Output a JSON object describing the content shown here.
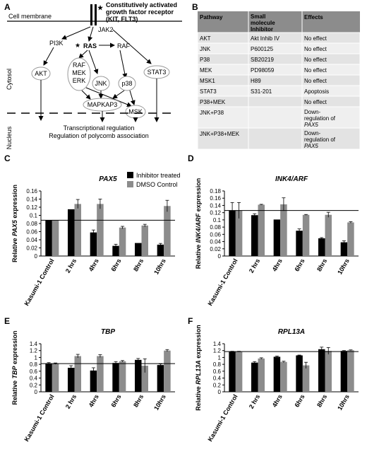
{
  "panels": {
    "A": "A",
    "B": "B",
    "C": "C",
    "D": "D",
    "E": "E",
    "F": "F"
  },
  "diagram": {
    "receptor_line1": "Constitutively activated",
    "receptor_line2": "growth factor receptor",
    "receptor_line3": "(KIT, FLT3)",
    "cell_membrane": "Cell membrane",
    "cytosol": "Cytosol",
    "nucleus": "Nucleus",
    "jak2": "JAK2",
    "pi3k": "PI3K",
    "ras": "RAS",
    "raf_top": "RAF",
    "akt": "AKT",
    "stat3": "STAT3",
    "raf": "RAF",
    "mek": "MEK",
    "erk": "ERK",
    "jnk": "JNK",
    "p38": "p38",
    "mapkap3": "MAPKAP3",
    "msk": "MSK",
    "out1": "Transcriptional regulation",
    "out2": "Regulation of polycomb association",
    "star": "★"
  },
  "table": {
    "headers": [
      "Pathway",
      "Small molecule Inhibitor",
      "Effects"
    ],
    "rows": [
      [
        "AKT",
        "Akt Inhib IV",
        "No effect"
      ],
      [
        "JNK",
        "P600125",
        "No effect"
      ],
      [
        "P38",
        "SB20219",
        "No effect"
      ],
      [
        "MEK",
        "PD98059",
        "No effect"
      ],
      [
        "MSK1",
        "H89",
        "No effect"
      ],
      [
        "STAT3",
        "S31-201",
        "Apoptosis"
      ],
      [
        "P38+MEK",
        "",
        "No effect"
      ],
      [
        "JNK+P38",
        "",
        "Down-regulation of PAX5"
      ],
      [
        "JNK+P38+MEK",
        "",
        "Down-regulation of PAX5"
      ]
    ]
  },
  "legend": {
    "series1": "Inhibitor treated",
    "series2": "DMSO Control",
    "color1": "#000000",
    "color2": "#8c8c8c"
  },
  "chart_data": [
    {
      "panel": "C",
      "type": "bar",
      "title": "PAX5",
      "ylabel": "Relative PAX5 expression",
      "ylabel_parts": [
        "Relative ",
        "PAX5",
        " expression"
      ],
      "categories": [
        "Kasumi-1 Control",
        "2 hrs",
        "4hrs",
        "6hrs",
        "8hrs",
        "10hrs"
      ],
      "ylim": [
        0,
        0.16
      ],
      "yticks": [
        "0",
        "0.02",
        "0.04",
        "0.06",
        "0.08",
        "0.1",
        "0.12",
        "0.14",
        "0.16"
      ],
      "reference_line": 0.088,
      "series": [
        {
          "name": "Inhibitor treated",
          "values": [
            0.088,
            0.115,
            0.058,
            0.025,
            0.032,
            0.028
          ],
          "errors": [
            0,
            0,
            0.006,
            0.004,
            0,
            0.003
          ]
        },
        {
          "name": "DMSO Control",
          "values": [
            0.088,
            0.128,
            0.128,
            0.07,
            0.075,
            0.123
          ],
          "errors": [
            0,
            0.011,
            0.012,
            0.003,
            0.003,
            0.014
          ]
        }
      ]
    },
    {
      "panel": "D",
      "type": "bar",
      "title": "INK4/ARF",
      "ylabel": "Relative INK4/ARF expression",
      "ylabel_parts": [
        "Relative ",
        "INK4/ARF",
        " expression"
      ],
      "categories": [
        "Kasumi-1 Control",
        "2 hrs",
        "4hrs",
        "6hrs",
        "8hrs",
        "10hrs"
      ],
      "ylim": [
        0,
        0.18
      ],
      "yticks": [
        "0",
        "0.02",
        "0.04",
        "0.06",
        "0.08",
        "0.1",
        "0.12",
        "0.14",
        "0.16",
        "0.18"
      ],
      "reference_line": 0.126,
      "series": [
        {
          "name": "Inhibitor treated",
          "values": [
            0.126,
            0.113,
            0.101,
            0.07,
            0.049,
            0.038
          ],
          "errors": [
            0.022,
            0.004,
            0,
            0.005,
            0.002,
            0.004
          ]
        },
        {
          "name": "DMSO Control",
          "values": [
            0.126,
            0.142,
            0.143,
            0.114,
            0.114,
            0.093
          ],
          "errors": [
            0.022,
            0.001,
            0.018,
            0.001,
            0.007,
            0.002
          ]
        }
      ]
    },
    {
      "panel": "E",
      "type": "bar",
      "title": "TBP",
      "ylabel": "Relative TBP expression",
      "ylabel_parts": [
        "Relative ",
        "TBP",
        " expression"
      ],
      "categories": [
        "Kasumi-1 Control",
        "2 hrs",
        "4hrs",
        "6hrs",
        "8hrs",
        "10hrs"
      ],
      "ylim": [
        0,
        1.4
      ],
      "yticks": [
        "0",
        "0.2",
        "0.4",
        "0.6",
        "0.8",
        "1",
        "1.2",
        "1.4"
      ],
      "reference_line": 0.82,
      "series": [
        {
          "name": "Inhibitor treated",
          "values": [
            0.82,
            0.7,
            0.62,
            0.84,
            0.93,
            0.78
          ],
          "errors": [
            0.03,
            0.06,
            0.08,
            0.04,
            0.04,
            0.03
          ]
        },
        {
          "name": "DMSO Control",
          "values": [
            0.82,
            1.04,
            1.04,
            0.89,
            0.76,
            1.2
          ],
          "errors": [
            0.02,
            0.05,
            0.04,
            0.02,
            0.2,
            0.03
          ]
        }
      ]
    },
    {
      "panel": "F",
      "type": "bar",
      "title": "RPL13A",
      "ylabel": "Relative RPL13A expression",
      "ylabel_parts": [
        "Relative ",
        "RPL13A",
        " expression"
      ],
      "categories": [
        "Kasumi-1 Control",
        "2 hrs",
        "4hrs",
        "6hrs",
        "8hrs",
        "10hrs"
      ],
      "ylim": [
        0,
        1.4
      ],
      "yticks": [
        "0",
        "0.2",
        "0.4",
        "0.6",
        "0.8",
        "1",
        "1.2",
        "1.4"
      ],
      "reference_line": 1.17,
      "series": [
        {
          "name": "Inhibitor treated",
          "values": [
            1.17,
            0.85,
            1.02,
            1.06,
            1.24,
            1.19
          ],
          "errors": [
            0.01,
            0.03,
            0.02,
            0.01,
            0.06,
            0.01
          ]
        },
        {
          "name": "DMSO Control",
          "values": [
            1.17,
            0.97,
            0.87,
            0.77,
            1.19,
            1.21
          ],
          "errors": [
            0.01,
            0.02,
            0.02,
            0.09,
            0.1,
            0.01
          ]
        }
      ]
    }
  ]
}
